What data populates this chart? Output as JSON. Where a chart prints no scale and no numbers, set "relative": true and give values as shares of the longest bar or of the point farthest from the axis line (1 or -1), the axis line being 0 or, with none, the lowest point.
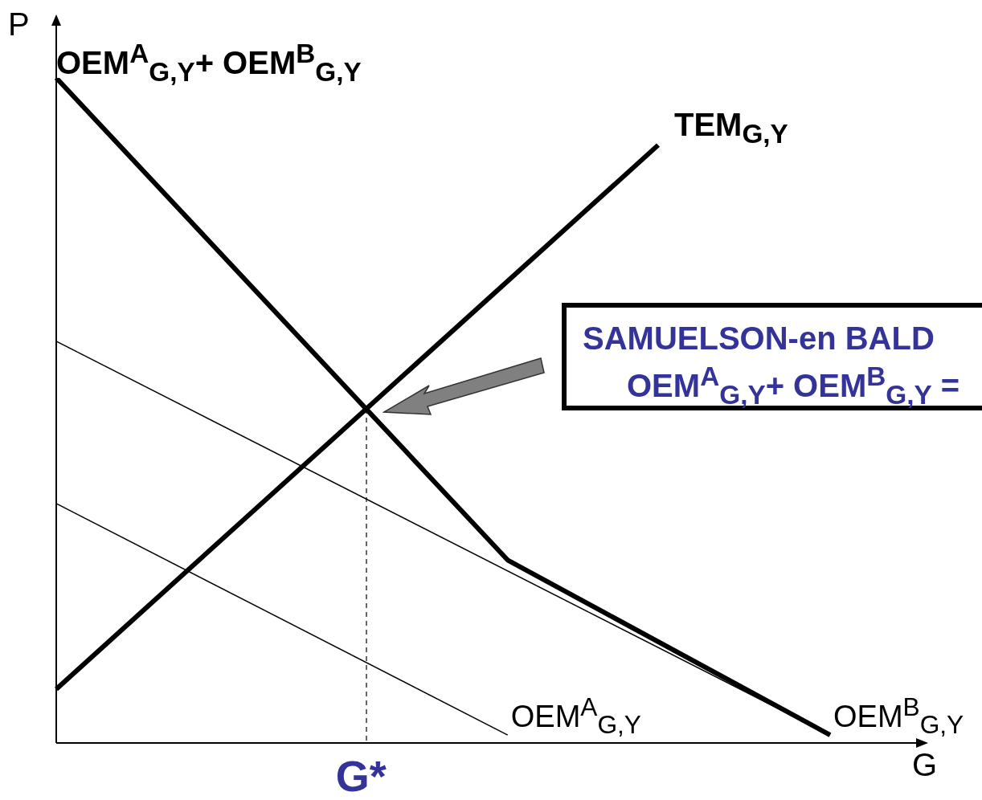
{
  "chart_data": {
    "type": "line",
    "relative": true,
    "xlabel": "G",
    "ylabel": "P",
    "marker": "none",
    "categories": [
      null,
      null,
      null,
      null,
      null,
      null,
      null,
      null,
      null,
      null,
      null,
      null,
      null,
      null,
      null,
      null,
      null,
      null,
      null,
      null,
      null,
      null,
      null,
      null,
      null,
      null,
      null,
      null,
      null,
      null,
      null,
      null,
      null,
      null,
      null,
      null,
      null,
      null,
      null,
      null,
      null
    ],
    "series": [
      {
        "name": "OEM$^{A}$$_{G,Y}$+ OEM$^{B}$$_{G,Y}$",
        "color": "#000000",
        "values": [
          1,
          null,
          null,
          null,
          null,
          null,
          null,
          null,
          null,
          null,
          null,
          null,
          null,
          null,
          null,
          null,
          null,
          null,
          null,
          null,
          null,
          0.275,
          null,
          null,
          null,
          null,
          null,
          null,
          null,
          null,
          null,
          null,
          null,
          null,
          null,
          null,
          0.012,
          null,
          null,
          null,
          null
        ]
      },
      {
        "name": "TEM$_{G,Y}$",
        "color": "#000000",
        "values": [
          0.081,
          null,
          null,
          null,
          null,
          null,
          null,
          null,
          null,
          null,
          null,
          null,
          null,
          null,
          null,
          null,
          null,
          null,
          null,
          null,
          null,
          null,
          null,
          null,
          null,
          null,
          null,
          null,
          0.899,
          null,
          null,
          null,
          null,
          null,
          null,
          null,
          null,
          null,
          null,
          null,
          null
        ]
      },
      {
        "name": "OEM$^{A}$$_{G,Y}$",
        "color": "#000000",
        "values": [
          0.36,
          null,
          null,
          null,
          null,
          null,
          null,
          null,
          null,
          null,
          null,
          null,
          null,
          null,
          null,
          null,
          null,
          null,
          null,
          null,
          null,
          0.012,
          null,
          null,
          null,
          null,
          null,
          null,
          null,
          null,
          null,
          null,
          null,
          null,
          null,
          null,
          null,
          null,
          null,
          null,
          null
        ]
      },
      {
        "name": "OEM$^{B}$$_{G,Y}$",
        "color": "#000000",
        "values": [
          0.604,
          null,
          null,
          null,
          null,
          null,
          null,
          null,
          null,
          null,
          null,
          null,
          null,
          null,
          null,
          null,
          null,
          null,
          null,
          null,
          null,
          null,
          null,
          null,
          null,
          null,
          null,
          null,
          null,
          null,
          null,
          null,
          null,
          null,
          null,
          null,
          0.012,
          null,
          null,
          null,
          null
        ]
      }
    ],
    "annotations": [
      "SAMUELSON-en BALD",
      "OEM$^{A}$$_{G,Y}$+ OEM$^{B}$$_{G,Y}$ =",
      "G*"
    ]
  }
}
